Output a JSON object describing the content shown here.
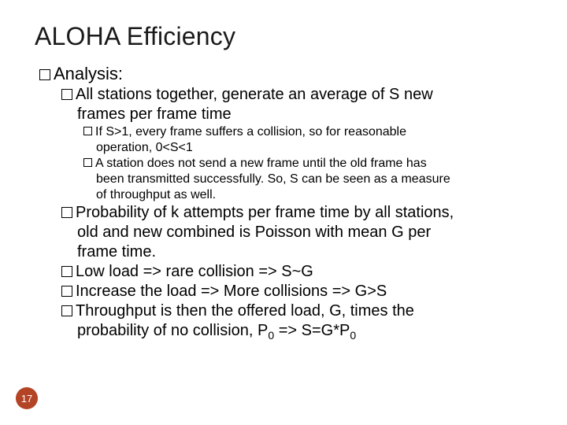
{
  "title": "ALOHA Efficiency",
  "b1": "Analysis:",
  "b2": "All stations together, generate an average of S new",
  "b2b": "frames per frame time",
  "b3": "If S>1, every frame suffers a collision, so for reasonable",
  "b3b": "operation, 0<S<1",
  "b4": "A station does not send a new frame until the old frame has",
  "b4b": "been transmitted successfully. So, S can be seen as a measure",
  "b4c": "of throughput as well.",
  "b5": "Probability of k attempts per frame time by all stations,",
  "b5b": "old and new combined is Poisson with mean G per",
  "b5c": "frame time.",
  "b6": "Low load => rare collision => S~G",
  "b7": "Increase the load => More collisions => G>S",
  "b8a": "Throughput is then the offered load, G, times the",
  "b8b_pre": "probability of no collision, P",
  "b8b_sub1": "0",
  "b8b_mid": " => S=G*P",
  "b8b_sub2": "0",
  "page_number": "17",
  "badge_bg": "#b34426",
  "badge_fg": "#ffffff"
}
